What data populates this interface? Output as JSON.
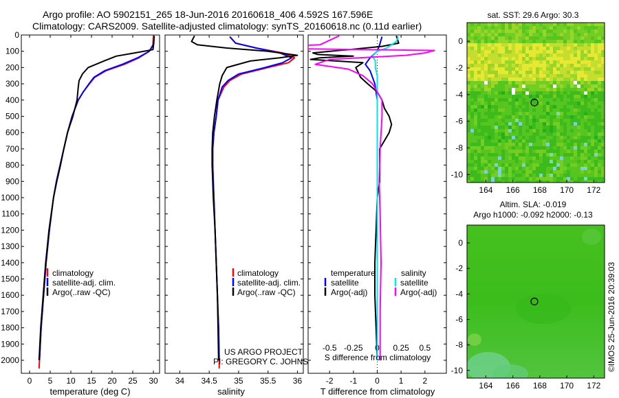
{
  "title": {
    "line1": "Argo profile: AO 5902151_265 18-Jun-2016 20160618_406 4.592S 167.596E",
    "line2": "Climatology: CARS2009. Satellite-adjusted climatology: synTS_20160618.nc (0.11d earlier)"
  },
  "credits": {
    "line1": "US ARGO PROJECT",
    "line2": "PI: GREGORY C. JOHNSON"
  },
  "imos_stamp": "©IMOS 25-Jun-2016 20:39:03",
  "colors": {
    "climatology": "#ff0000",
    "satellite": "#0000ff",
    "argo": "#000000",
    "salt_sat": "#00e5ee",
    "salt_argo": "#ff00ff"
  },
  "chart_data": [
    {
      "id": "temperature",
      "type": "line",
      "xlabel": "temperature (deg C)",
      "xlim": [
        -2,
        31.5
      ],
      "xticks": [
        0,
        5,
        10,
        15,
        20,
        25,
        30
      ],
      "ylim": [
        0,
        2080
      ],
      "yticks": [
        0,
        100,
        200,
        300,
        400,
        500,
        600,
        700,
        800,
        900,
        1000,
        1100,
        1200,
        1300,
        1400,
        1500,
        1600,
        1700,
        1800,
        1900,
        2000
      ],
      "legend": {
        "position": "lower-middle",
        "entries": [
          "climatology",
          "satellite-adj. clim.",
          "Argo(..raw -QC)"
        ]
      },
      "series": [
        {
          "name": "climatology",
          "color": "#ff0000",
          "depth": [
            10,
            60,
            100,
            140,
            180,
            220,
            260,
            300,
            350,
            400,
            500,
            600,
            700,
            800,
            900,
            1000,
            1200,
            1400,
            1600,
            1800,
            2000,
            2050
          ],
          "values": [
            30.0,
            29.9,
            29.0,
            26.5,
            23.0,
            18.5,
            15.8,
            14.5,
            13.0,
            11.8,
            10.3,
            9.2,
            8.3,
            7.4,
            6.5,
            5.8,
            4.8,
            4.0,
            3.4,
            2.8,
            2.4,
            2.3
          ]
        },
        {
          "name": "satellite-adj. clim.",
          "color": "#0000ff",
          "depth": [
            10,
            60,
            100,
            140,
            180,
            220,
            260,
            300,
            350,
            400,
            500,
            600,
            700,
            800,
            900,
            1000,
            1200,
            1400,
            1600,
            1800,
            2000
          ],
          "values": [
            30.2,
            30.0,
            29.0,
            26.2,
            22.5,
            18.2,
            15.6,
            14.4,
            13.0,
            11.8,
            10.3,
            9.2,
            8.3,
            7.4,
            6.5,
            5.8,
            4.8,
            4.0,
            3.4,
            2.8,
            2.4
          ]
        },
        {
          "name": "Argo(..raw -QC)",
          "color": "#000000",
          "depth": [
            5,
            50,
            90,
            110,
            130,
            160,
            200,
            240,
            280,
            320,
            400,
            500,
            600,
            700,
            800,
            900,
            1000,
            1200,
            1400,
            1600,
            1800,
            2000
          ],
          "values": [
            30.2,
            30.1,
            29.9,
            25.5,
            21.0,
            18.0,
            14.2,
            12.8,
            12.0,
            11.8,
            11.5,
            10.5,
            9.2,
            8.3,
            7.5,
            6.6,
            5.8,
            4.7,
            3.9,
            3.3,
            2.7,
            2.3
          ]
        }
      ]
    },
    {
      "id": "salinity",
      "type": "line",
      "xlabel": "salinity",
      "xlim": [
        33.75,
        36.1
      ],
      "xticks": [
        34,
        34.5,
        35,
        35.5,
        36
      ],
      "xticklabels": [
        "34",
        "34.5",
        "35",
        "35.5",
        "36"
      ],
      "ylim": [
        0,
        2080
      ],
      "legend": {
        "position": "lower-middle",
        "entries": [
          "climatology",
          "satellite-adj. clim.",
          "Argo(..raw -QC)"
        ]
      },
      "series": [
        {
          "name": "climatology",
          "color": "#ff0000",
          "depth": [
            10,
            50,
            80,
            110,
            140,
            170,
            200,
            240,
            280,
            320,
            400,
            500,
            600,
            700,
            800,
            900,
            1000,
            1200,
            1400,
            1600,
            1800,
            2000,
            2050
          ],
          "values": [
            34.85,
            34.95,
            35.3,
            35.75,
            35.95,
            35.85,
            35.5,
            35.05,
            34.85,
            34.75,
            34.65,
            34.62,
            34.58,
            34.56,
            34.56,
            34.57,
            34.58,
            34.6,
            34.62,
            34.64,
            34.66,
            34.67,
            34.67
          ]
        },
        {
          "name": "satellite-adj. clim.",
          "color": "#0000ff",
          "depth": [
            10,
            50,
            80,
            110,
            140,
            170,
            200,
            240,
            280,
            320,
            400,
            500,
            600,
            700,
            800,
            900,
            1000,
            1200,
            1400,
            1600,
            1800,
            2000
          ],
          "values": [
            34.85,
            34.95,
            35.3,
            35.7,
            35.9,
            35.75,
            35.45,
            35.0,
            34.82,
            34.72,
            34.65,
            34.62,
            34.58,
            34.56,
            34.56,
            34.57,
            34.58,
            34.6,
            34.62,
            34.64,
            34.66,
            34.67
          ]
        },
        {
          "name": "Argo(..raw -QC)",
          "color": "#000000",
          "depth": [
            5,
            40,
            60,
            80,
            100,
            125,
            140,
            160,
            200,
            250,
            300,
            400,
            500,
            600,
            700,
            800,
            900,
            1000,
            1200,
            1400,
            1600,
            1800,
            2000
          ],
          "values": [
            34.25,
            34.2,
            34.3,
            34.8,
            35.5,
            36.0,
            35.7,
            35.2,
            34.8,
            34.72,
            34.68,
            34.63,
            34.59,
            34.56,
            34.55,
            34.55,
            34.56,
            34.57,
            34.6,
            34.62,
            34.64,
            34.65,
            34.66
          ]
        }
      ]
    },
    {
      "id": "differences",
      "type": "line",
      "xlabel": "T difference from climatology",
      "xlabel_top": "S difference from climatology",
      "xlim": [
        -2.9,
        2.9
      ],
      "xticks": [
        -2,
        -1,
        0,
        1,
        2
      ],
      "xticklabels": [
        "-2",
        "-1",
        "0",
        "1",
        "2"
      ],
      "sticks": [
        -0.5,
        -0.25,
        0,
        0.25,
        0.5
      ],
      "sticklabels": [
        "-0.5",
        "-0.25",
        "0",
        "0.25",
        "0.5"
      ],
      "ylim": [
        0,
        2080
      ],
      "legend": {
        "temperature_title": "temperature",
        "salinity_title": "salinity",
        "entries": [
          "satellite",
          "Argo(-adj)",
          "satellite",
          "Argo(-adj)"
        ]
      },
      "series": [
        {
          "name": "T satellite",
          "color": "#0000ff",
          "depth": [
            10,
            60,
            100,
            140,
            180,
            220,
            260,
            300,
            400,
            600,
            1000,
            1500,
            2000
          ],
          "values": [
            0.2,
            0.1,
            0.0,
            -0.3,
            -0.5,
            -0.3,
            -0.2,
            -0.1,
            0.0,
            0.0,
            0.0,
            0.0,
            0.0
          ]
        },
        {
          "name": "T Argo(-adj)",
          "color": "#000000",
          "depth": [
            5,
            50,
            70,
            90,
            110,
            120,
            130,
            140,
            150,
            170,
            200,
            230,
            260,
            300,
            350,
            400,
            450,
            500,
            550,
            600,
            650,
            700,
            800,
            900,
            1000,
            1200,
            1400,
            1600,
            1800,
            2000
          ],
          "values": [
            0.8,
            0.9,
            0.2,
            -1.2,
            -2.7,
            -2.5,
            -1.0,
            -2.4,
            -2.8,
            -0.6,
            -0.9,
            -0.8,
            -0.7,
            -0.4,
            0.0,
            0.2,
            0.3,
            0.5,
            0.6,
            0.5,
            0.3,
            0.1,
            0.1,
            0.1,
            0.0,
            -0.05,
            -0.1,
            -0.1,
            -0.05,
            0.0
          ]
        },
        {
          "name": "S satellite",
          "color": "#00e5ee",
          "depth": [
            10,
            40,
            60,
            80,
            100,
            130,
            160,
            200,
            250,
            300,
            400,
            600,
            1000,
            1500,
            2000
          ],
          "values": [
            0.22,
            0.2,
            0.15,
            0.1,
            0.0,
            -0.05,
            -0.02,
            -0.02,
            0.0,
            0.0,
            0.0,
            0.0,
            0.0,
            0.0,
            0.0
          ]
        },
        {
          "name": "S Argo(-adj)",
          "color": "#ff00ff",
          "depth": [
            5,
            60,
            80,
            95,
            110,
            125,
            150,
            180,
            210,
            250,
            300,
            400,
            500,
            700,
            900,
            1100,
            1400,
            1700,
            2000
          ],
          "values": [
            -0.4,
            -0.6,
            -1.5,
            0.6,
            0.5,
            0.3,
            -0.5,
            -0.65,
            -0.3,
            -0.15,
            -0.05,
            0.05,
            0.05,
            0.03,
            0.02,
            0.03,
            0.04,
            0.03,
            0.03
          ]
        }
      ]
    },
    {
      "id": "sst_map",
      "type": "heatmap",
      "title": "sat. SST: 29.6 Argo: 30.3",
      "xlim": [
        162.6,
        172.8
      ],
      "ylim": [
        -10.6,
        1.4
      ],
      "xticks": [
        164,
        166,
        168,
        170,
        172
      ],
      "yticks": [
        0,
        -2,
        -4,
        -6,
        -8,
        -10
      ],
      "float_position": {
        "lon": 167.596,
        "lat": -4.592
      }
    },
    {
      "id": "sla_map",
      "type": "heatmap",
      "title_line1": "Altim. SLA: -0.019",
      "title_line2": "Argo h1000: -0.092 h2000: -0.13",
      "xlim": [
        162.6,
        172.8
      ],
      "ylim": [
        -10.6,
        1.4
      ],
      "xticks": [
        164,
        166,
        168,
        170,
        172
      ],
      "yticks": [
        0,
        -2,
        -4,
        -6,
        -8,
        -10
      ],
      "float_position": {
        "lon": 167.596,
        "lat": -4.592
      }
    }
  ]
}
